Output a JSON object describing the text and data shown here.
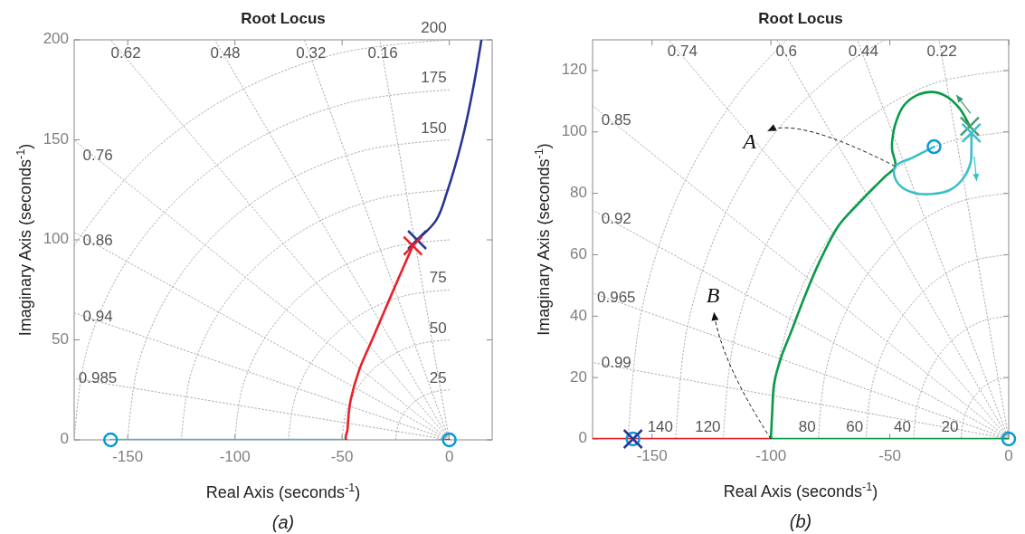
{
  "chart_data": [
    {
      "type": "line",
      "title": "Root Locus",
      "xlabel": "Real Axis (seconds$^{-1}$)",
      "ylabel": "Imaginary Axis (seconds$^{-1}$)",
      "xlim": [
        -175,
        20
      ],
      "ylim": [
        0,
        200
      ],
      "xticks": [
        -150,
        -100,
        -50,
        0
      ],
      "yticks": [
        0,
        50,
        100,
        150,
        200
      ],
      "series": [
        {
          "color": "#aaaaaa",
          "line_style": "dotted",
          "x": [
            0,
            -158
          ],
          "values": [
            0,
            200
          ]
        },
        {
          "color": "#aaaaaa",
          "line_style": "dotted",
          "x": [
            0,
            -109.4
          ],
          "values": [
            0,
            200
          ]
        },
        {
          "color": "#aaaaaa",
          "line_style": "dotted",
          "x": [
            0,
            -67.6
          ],
          "values": [
            0,
            200
          ]
        },
        {
          "color": "#aaaaaa",
          "line_style": "dotted",
          "x": [
            0,
            -32.4
          ],
          "values": [
            0,
            200
          ]
        },
        {
          "color": "#aaaaaa",
          "line_style": "dotted",
          "x": [
            0,
            -175
          ],
          "values": [
            0,
            149.7
          ]
        },
        {
          "color": "#aaaaaa",
          "line_style": "dotted",
          "x": [
            0,
            -175
          ],
          "values": [
            0,
            103.8
          ]
        },
        {
          "color": "#aaaaaa",
          "line_style": "dotted",
          "x": [
            0,
            -175
          ],
          "values": [
            0,
            63.5
          ]
        },
        {
          "color": "#aaaaaa",
          "line_style": "dotted",
          "x": [
            0,
            -175
          ],
          "values": [
            0,
            30.7
          ]
        },
        {
          "color": "#aaaaaa",
          "line_style": "dotted",
          "x": [
            0,
            -6.5,
            -12.5,
            -17.7,
            -21.7,
            -24.1,
            -25
          ],
          "values": [
            25,
            24.1,
            21.7,
            17.7,
            12.5,
            6.5,
            0
          ]
        },
        {
          "color": "#aaaaaa",
          "line_style": "dotted",
          "x": [
            0,
            -12.9,
            -25,
            -35.4,
            -43.3,
            -48.3,
            -50
          ],
          "values": [
            50,
            48.3,
            43.3,
            35.4,
            25,
            12.9,
            0
          ]
        },
        {
          "color": "#aaaaaa",
          "line_style": "dotted",
          "x": [
            0,
            -19.4,
            -37.5,
            -53,
            -65,
            -72.4,
            -75
          ],
          "values": [
            75,
            72.4,
            65,
            53,
            37.5,
            19.4,
            0
          ]
        },
        {
          "color": "#aaaaaa",
          "line_style": "dotted",
          "x": [
            0,
            -25.9,
            -50,
            -70.7,
            -86.6,
            -96.6,
            -100
          ],
          "values": [
            100,
            96.6,
            86.6,
            70.7,
            50,
            25.9,
            0
          ]
        },
        {
          "color": "#aaaaaa",
          "line_style": "dotted",
          "x": [
            0,
            -32.4,
            -62.5,
            -88.4,
            -108.3,
            -120.7,
            -125
          ],
          "values": [
            125,
            120.7,
            108.3,
            88.4,
            62.5,
            32.4,
            0
          ]
        },
        {
          "color": "#aaaaaa",
          "line_style": "dotted",
          "x": [
            0,
            -38.8,
            -75,
            -106.1,
            -129.9,
            -144.9,
            -150
          ],
          "values": [
            150,
            144.9,
            129.9,
            106.1,
            75,
            38.8,
            0
          ]
        },
        {
          "color": "#aaaaaa",
          "line_style": "dotted",
          "x": [
            0,
            -45.3,
            -87.5,
            -123.7,
            -151.6,
            -169,
            -175
          ],
          "values": [
            175,
            169,
            151.6,
            123.7,
            87.5,
            45.3,
            0
          ]
        },
        {
          "color": "#aaaaaa",
          "line_style": "dotted",
          "x": [
            0,
            -51.8,
            -100,
            -141.4,
            -173.2,
            -175
          ],
          "values": [
            200,
            193.2,
            173.2,
            141.4,
            100,
            96.8
          ]
        },
        {
          "color": "#3cbfc8",
          "x": [
            -158,
            -48
          ],
          "values": [
            0,
            0
          ]
        },
        {
          "color": "#e8202a",
          "x": [
            0,
            -48,
            -47.5,
            -47,
            -46,
            -42,
            -36,
            -30,
            -24,
            -17
          ],
          "values": [
            0,
            0,
            5,
            12,
            20,
            35,
            50,
            65,
            80,
            97
          ]
        },
        {
          "color": "#2a3593",
          "x": [
            -15,
            -6,
            -1,
            6,
            11,
            15
          ],
          "values": [
            100,
            110,
            124,
            150,
            175,
            200
          ]
        },
        {
          "type": "scatter",
          "marker": "circle",
          "color": "#0a9ad6",
          "x": [
            -158,
            0
          ],
          "values": [
            0,
            0
          ]
        },
        {
          "type": "scatter",
          "marker": "cross",
          "color": "#2a3593",
          "x": [
            -15
          ],
          "values": [
            100
          ]
        },
        {
          "type": "scatter",
          "marker": "cross",
          "color": "#e8202a",
          "x": [
            -17
          ],
          "values": [
            97
          ]
        }
      ],
      "annotations": [
        {
          "text": "0.62",
          "x": -150.9,
          "y": 191
        },
        {
          "text": "0.48",
          "x": -104.5,
          "y": 191
        },
        {
          "text": "0.32",
          "x": -64.5,
          "y": 191
        },
        {
          "text": "0.16",
          "x": -31,
          "y": 191
        },
        {
          "text": "0.76",
          "x": -164,
          "y": 140.2
        },
        {
          "text": "0.86",
          "x": -164,
          "y": 97.3
        },
        {
          "text": "0.94",
          "x": -164,
          "y": 59.5
        },
        {
          "text": "0.985",
          "x": -164,
          "y": 28.7
        },
        {
          "text": "200",
          "x": 0,
          "y": 200
        },
        {
          "text": "175",
          "x": 0,
          "y": 175
        },
        {
          "text": "150",
          "x": 0,
          "y": 150
        },
        {
          "text": "75",
          "x": 0,
          "y": 75
        },
        {
          "text": "50",
          "x": 0,
          "y": 50
        },
        {
          "text": "25",
          "x": 0,
          "y": 25
        },
        "(a)"
      ]
    },
    {
      "type": "line",
      "title": "Root Locus",
      "xlabel": "Real Axis (seconds$^{-1}$)",
      "ylabel": "Imaginary Axis (seconds$^{-1}$)",
      "xlim": [
        -175,
        0
      ],
      "ylim": [
        0,
        130
      ],
      "xticks": [
        -150,
        -100,
        -50,
        0
      ],
      "yticks": [
        0,
        20,
        40,
        60,
        80,
        100,
        120
      ],
      "series": [
        {
          "color": "#aaaaaa",
          "line_style": "dotted",
          "x": [
            0,
            -143
          ],
          "values": [
            0,
            130
          ]
        },
        {
          "color": "#aaaaaa",
          "line_style": "dotted",
          "x": [
            0,
            -97.5
          ],
          "values": [
            0,
            130
          ]
        },
        {
          "color": "#aaaaaa",
          "line_style": "dotted",
          "x": [
            0,
            -63.7
          ],
          "values": [
            0,
            130
          ]
        },
        {
          "color": "#aaaaaa",
          "line_style": "dotted",
          "x": [
            0,
            -29.3
          ],
          "values": [
            0,
            130
          ]
        },
        {
          "color": "#aaaaaa",
          "line_style": "dotted",
          "x": [
            0,
            -175
          ],
          "values": [
            0,
            108.5
          ]
        },
        {
          "color": "#aaaaaa",
          "line_style": "dotted",
          "x": [
            0,
            -175
          ],
          "values": [
            0,
            74.5
          ]
        },
        {
          "color": "#aaaaaa",
          "line_style": "dotted",
          "x": [
            0,
            -175
          ],
          "values": [
            0,
            47.5
          ]
        },
        {
          "color": "#aaaaaa",
          "line_style": "dotted",
          "x": [
            0,
            -175
          ],
          "values": [
            0,
            24.9
          ]
        },
        {
          "color": "#aaaaaa",
          "line_style": "dotted",
          "x": [
            0,
            -5.2,
            -10,
            -14.1,
            -17.3,
            -19.3,
            -20
          ],
          "values": [
            20,
            19.3,
            17.3,
            14.1,
            10,
            5.2,
            0
          ]
        },
        {
          "color": "#aaaaaa",
          "line_style": "dotted",
          "x": [
            0,
            -10.4,
            -20,
            -28.3,
            -34.6,
            -38.6,
            -40
          ],
          "values": [
            40,
            38.6,
            34.6,
            28.3,
            20,
            10.4,
            0
          ]
        },
        {
          "color": "#aaaaaa",
          "line_style": "dotted",
          "x": [
            0,
            -15.5,
            -30,
            -42.4,
            -52,
            -58,
            -60
          ],
          "values": [
            60,
            58,
            52,
            42.4,
            30,
            15.5,
            0
          ]
        },
        {
          "color": "#aaaaaa",
          "line_style": "dotted",
          "x": [
            0,
            -20.7,
            -40,
            -56.6,
            -69.3,
            -77.3,
            -80
          ],
          "values": [
            80,
            77.3,
            69.3,
            56.6,
            40,
            20.7,
            0
          ]
        },
        {
          "color": "#aaaaaa",
          "line_style": "dotted",
          "x": [
            0,
            -25.9,
            -50,
            -70.7,
            -86.6,
            -96.6,
            -100
          ],
          "values": [
            100,
            96.6,
            86.6,
            70.7,
            50,
            25.9,
            0
          ]
        },
        {
          "color": "#aaaaaa",
          "line_style": "dotted",
          "x": [
            0,
            -31.1,
            -60,
            -84.9,
            -103.9,
            -115.9,
            -120
          ],
          "values": [
            120,
            115.9,
            103.9,
            84.9,
            60,
            31.1,
            0
          ]
        },
        {
          "color": "#aaaaaa",
          "line_style": "dotted",
          "x": [
            -52,
            -70,
            -99,
            -121.2,
            -135.2,
            -140
          ],
          "values": [
            130,
            121.2,
            99,
            70,
            36.2,
            0
          ]
        },
        {
          "color": "#aaaaaa",
          "line_style": "dotted",
          "x": [
            -93.3,
            -113.1,
            -138.6,
            -154.5,
            -160
          ],
          "values": [
            130,
            113.1,
            80,
            41.4,
            0
          ]
        },
        {
          "color": "#e8202a",
          "x": [
            -175,
            -100
          ],
          "values": [
            0,
            0
          ]
        },
        {
          "color": "#0a9a48",
          "x": [
            -100,
            0
          ],
          "values": [
            0,
            0
          ]
        },
        {
          "color": "#0a9a48",
          "x": [
            -100,
            -99.5,
            -98.6,
            -95.5,
            -91.8,
            -86,
            -80,
            -71.5,
            -64,
            -57.8,
            -52,
            -47.7,
            -49,
            -49,
            -47.5,
            -44,
            -38.5,
            -32,
            -26,
            -20.5,
            -16.4
          ],
          "values": [
            0,
            8,
            18.3,
            27,
            34.3,
            46,
            57,
            69.5,
            76,
            81,
            85.5,
            88.8,
            94,
            97,
            103,
            108.7,
            112,
            113,
            111.5,
            107.5,
            101.8
          ]
        },
        {
          "color": "#3cbfc8",
          "x": [
            -31.4,
            -40,
            -47.7,
            -48,
            -45,
            -39,
            -32,
            -25,
            -19.7,
            -16,
            -15.7,
            -15.7
          ],
          "values": [
            95.2,
            91.8,
            88.8,
            85.5,
            82,
            80,
            79.8,
            81,
            84.3,
            90,
            94,
            99.7
          ]
        },
        {
          "type": "scatter",
          "marker": "circle",
          "color": "#0a9ad6",
          "x": [
            -158,
            0,
            -31.4
          ],
          "values": [
            0,
            0,
            95.2
          ]
        },
        {
          "type": "scatter",
          "marker": "cross",
          "color": "#2a3593",
          "x": [
            -158
          ],
          "values": [
            0
          ]
        },
        {
          "type": "scatter",
          "marker": "cross",
          "color": "#4c9a70",
          "x": [
            -16.4
          ],
          "values": [
            101.8
          ]
        },
        {
          "type": "scatter",
          "marker": "cross",
          "color": "#3cbfc8",
          "x": [
            -15.7
          ],
          "values": [
            99.7
          ]
        }
      ],
      "annotations": [
        {
          "text": "0.74",
          "x": -137.2,
          "y": 124.7
        },
        {
          "text": "0.6",
          "x": -93.5,
          "y": 124.7
        },
        {
          "text": "0.44",
          "x": -61.1,
          "y": 124.7
        },
        {
          "text": "0.22",
          "x": -28.1,
          "y": 124.7
        },
        {
          "text": "0.85",
          "x": -165,
          "y": 102.3
        },
        {
          "text": "0.92",
          "x": -165,
          "y": 70.3
        },
        {
          "text": "0.965",
          "x": -165,
          "y": 44.8
        },
        {
          "text": "0.99",
          "x": -165,
          "y": 23.5
        },
        {
          "text": "140",
          "x": -140,
          "y": 0
        },
        {
          "text": "120",
          "x": -120,
          "y": 0
        },
        {
          "text": "80",
          "x": -80,
          "y": 0
        },
        {
          "text": "60",
          "x": -60,
          "y": 0
        },
        {
          "text": "40",
          "x": -40,
          "y": 0
        },
        {
          "text": "20",
          "x": -20,
          "y": 0
        },
        {
          "text": "A",
          "x": -47.7,
          "y": 88.8
        },
        {
          "text": "B",
          "x": -100,
          "y": 0
        },
        "(b)"
      ]
    }
  ]
}
